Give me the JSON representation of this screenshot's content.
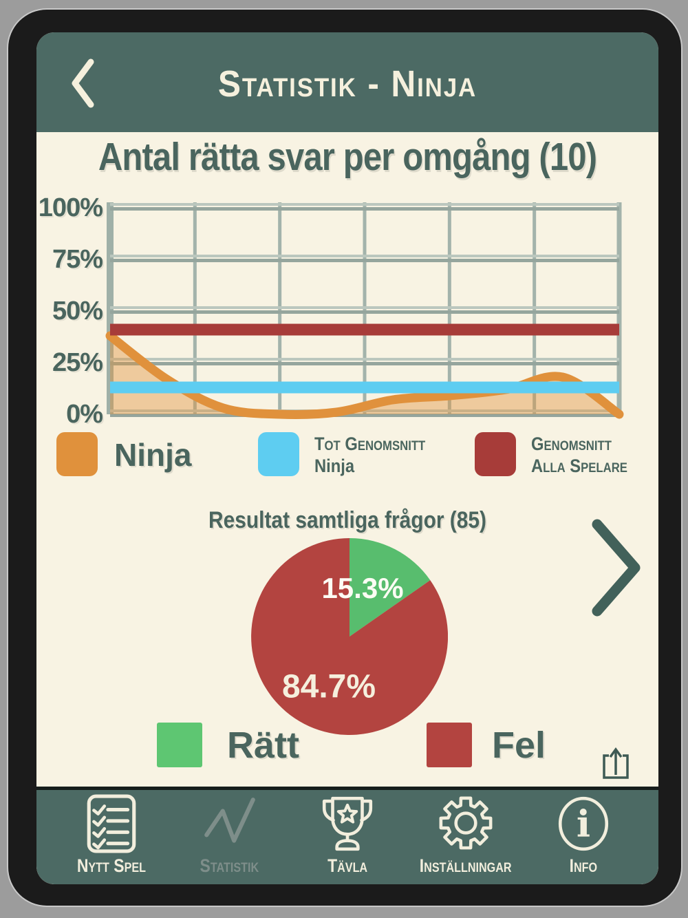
{
  "header": {
    "title": "Statistik - Ninja"
  },
  "line_chart_section": {
    "legend": [
      {
        "line1": "Ninja"
      },
      {
        "line1": "Tot Genomsnitt",
        "line2": "Ninja"
      },
      {
        "line1": "Genomsnitt",
        "line2": "Alla Spelare"
      }
    ]
  },
  "pie_section": {
    "legend": [
      {
        "label": "Rätt"
      },
      {
        "label": "Fel"
      }
    ]
  },
  "nav": {
    "items": [
      {
        "label": "Nytt Spel",
        "icon": "checklist-icon",
        "current": false
      },
      {
        "label": "Statistik",
        "icon": "line-chart-icon",
        "current": true
      },
      {
        "label": "Tävla",
        "icon": "trophy-icon",
        "current": false
      },
      {
        "label": "Inställningar",
        "icon": "gear-icon",
        "current": false
      },
      {
        "label": "Info",
        "icon": "info-icon",
        "current": false
      }
    ]
  },
  "chart_data": [
    {
      "type": "area",
      "title": "Antal rätta svar per omgång (10)",
      "rounds_shown": 10,
      "ylim": [
        0,
        100
      ],
      "y_ticks": [
        "0%",
        "25%",
        "50%",
        "75%",
        "100%"
      ],
      "grid": true,
      "x_divisions": 6,
      "legend_position": "bottom",
      "series": [
        {
          "name": "Ninja",
          "kind": "smooth-area",
          "color": "#e0913c",
          "fill_opacity": 0.42,
          "values": [
            38,
            17,
            3,
            0,
            1,
            7,
            9,
            12,
            18,
            0
          ]
        },
        {
          "name": "Tot Genomsnitt Ninja",
          "kind": "hline",
          "color": "#5ecdf1",
          "value": 13
        },
        {
          "name": "Genomsnitt Alla Spelare",
          "kind": "hline",
          "color": "#a73c39",
          "value": 41
        }
      ]
    },
    {
      "type": "pie",
      "title": "Resultat samtliga frågor (85)",
      "questions_total": 85,
      "start_angle_deg": -90,
      "direction": "clockwise",
      "slices": [
        {
          "label": "Rätt",
          "value": 15.3,
          "text": "15.3%",
          "color": "#58bd6e",
          "legend_color": "#5ec672"
        },
        {
          "label": "Fel",
          "value": 84.7,
          "text": "84.7%",
          "color": "#b34440",
          "legend_color": "#b34440"
        }
      ]
    }
  ]
}
